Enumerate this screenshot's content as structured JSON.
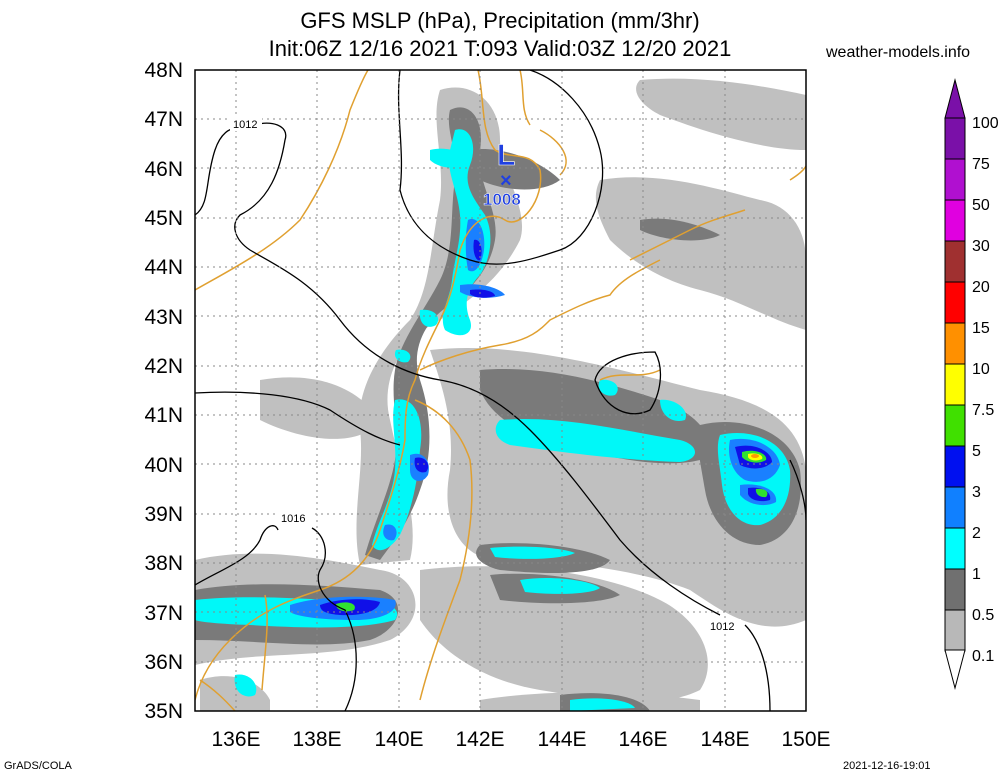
{
  "title": {
    "line1": "GFS MSLP (hPa), Precipitation (mm/3hr)",
    "line2": "Init:06Z 12/16 2021 T:093 Valid:03Z 12/20 2021"
  },
  "source": "weather-models.info",
  "footer": {
    "left": "GrADS/COLA",
    "right": "2021-12-16-19:01"
  },
  "map": {
    "lat_range": [
      35,
      48
    ],
    "lon_range": [
      135,
      150
    ],
    "lat_ticks": [
      "35N",
      "36N",
      "37N",
      "38N",
      "39N",
      "40N",
      "41N",
      "42N",
      "43N",
      "44N",
      "45N",
      "46N",
      "47N",
      "48N"
    ],
    "lon_ticks": [
      "136E",
      "138E",
      "140E",
      "142E",
      "144E",
      "146E",
      "148E",
      "150E"
    ],
    "grid": "dotted",
    "coastline_color": "#e0a030",
    "low_center": {
      "symbol": "L",
      "marker": "×",
      "pressure": "1008"
    },
    "isobar_labels": [
      "1012",
      "1016",
      "1012"
    ]
  },
  "legend": {
    "labels": [
      "100",
      "75",
      "50",
      "30",
      "20",
      "15",
      "10",
      "7.5",
      "5",
      "3",
      "2",
      "1",
      "0.5",
      "0.1"
    ],
    "colors": [
      "#7a10a8",
      "#b010d0",
      "#e000e0",
      "#a03030",
      "#ff0000",
      "#ff9000",
      "#ffff00",
      "#40e000",
      "#0010f0",
      "#1080ff",
      "#00ffff",
      "#707070",
      "#b8b8b8"
    ]
  }
}
